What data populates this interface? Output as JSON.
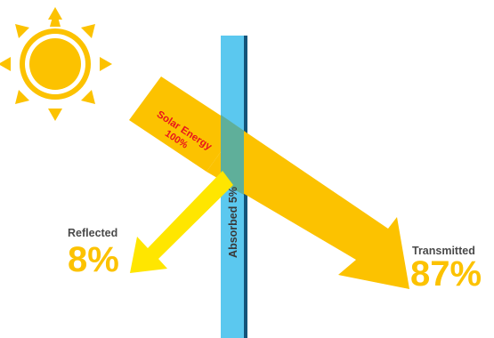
{
  "diagram": {
    "solar_label_line1": "Solar Energy",
    "solar_label_line2": "100%",
    "absorbed_label": "Absorbed 5%",
    "reflected": {
      "label": "Reflected",
      "value": "8%"
    },
    "transmitted": {
      "label": "Transmitted",
      "value": "87%"
    }
  },
  "colors": {
    "sun": "#FCC200",
    "incident_arrow": "#FCC200",
    "transmitted_arrow": "#FCC200",
    "reflected_arrow": "#FFE600",
    "glass_front": "#5BC8EF",
    "glass_edge": "#14547A",
    "glass_overlap": "#5FAF9A",
    "solar_text": "#E8141C",
    "label_dark": "#4A4A4A",
    "value_yellow": "#FCC200"
  }
}
